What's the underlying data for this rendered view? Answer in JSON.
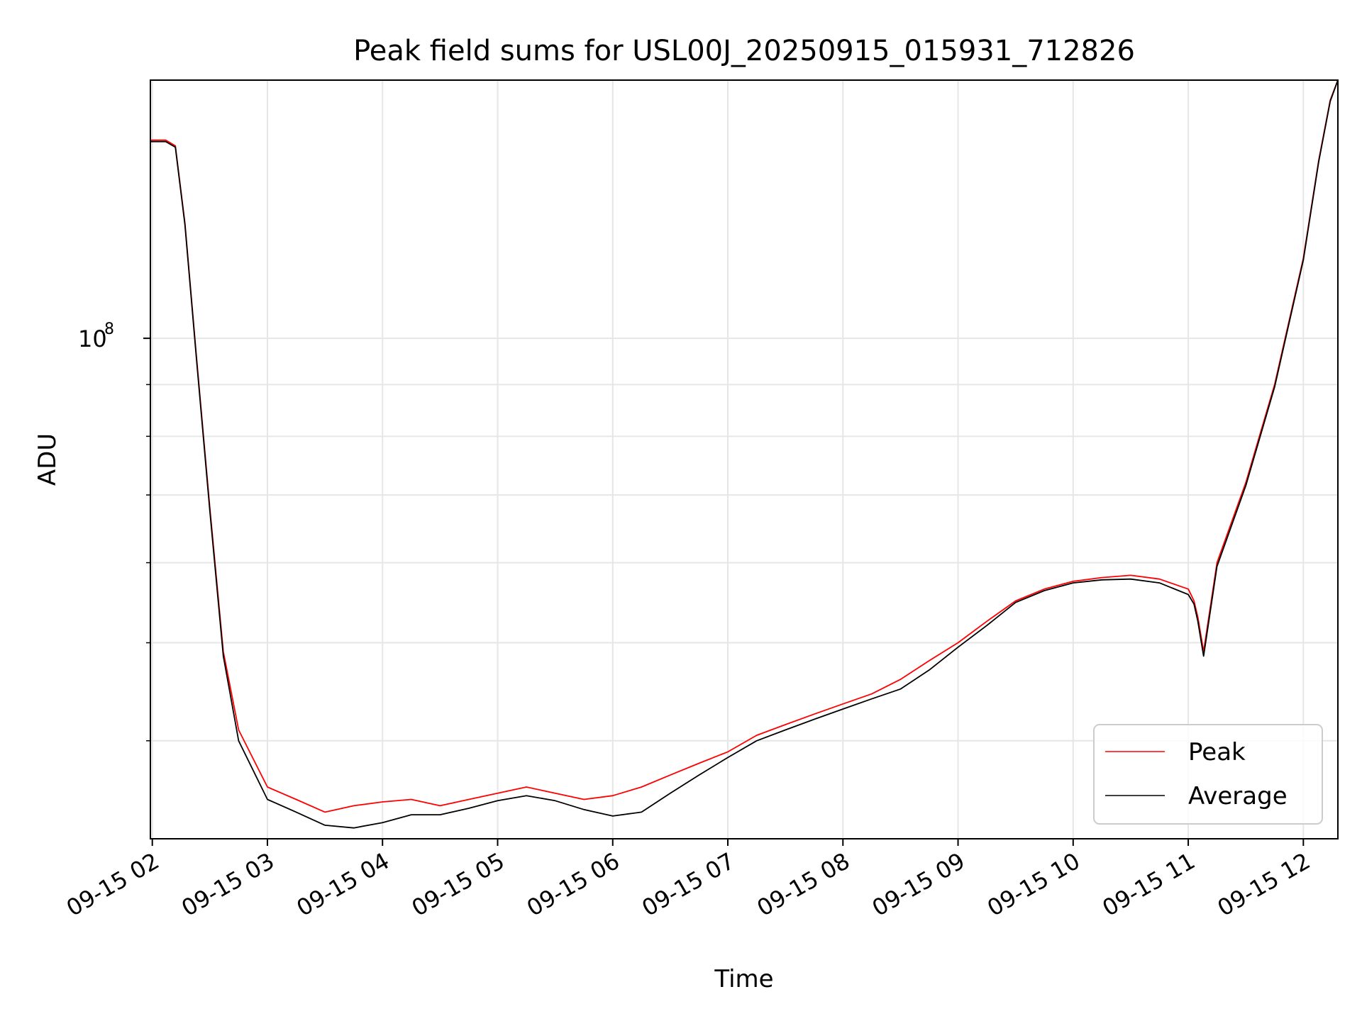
{
  "chart_data": {
    "type": "line",
    "title": "Peak field sums for USL00J_20250915_015931_712826",
    "xlabel": "Time",
    "ylabel": "ADU",
    "y_scale": "log",
    "ylim": [
      32000000,
      180000000
    ],
    "xlim": [
      "09-15 01:59",
      "09-15 12:18"
    ],
    "grid": true,
    "legend_position": "lower-right",
    "x_tick_labels": [
      "09-15 02",
      "09-15 03",
      "09-15 04",
      "09-15 05",
      "09-15 06",
      "09-15 07",
      "09-15 08",
      "09-15 09",
      "09-15 10",
      "09-15 11",
      "09-15 12"
    ],
    "y_tick_label_base": "10",
    "y_tick_label_exp": "8",
    "y_tick_value": 100000000,
    "series": [
      {
        "name": "Peak",
        "color": "#ff0000",
        "x": [
          "09-15 01:59",
          "09-15 02:07",
          "09-15 02:12",
          "09-15 02:17",
          "09-15 02:23",
          "09-15 02:30",
          "09-15 02:37",
          "09-15 02:45",
          "09-15 03:00",
          "09-15 03:15",
          "09-15 03:30",
          "09-15 03:45",
          "09-15 04:00",
          "09-15 04:15",
          "09-15 04:30",
          "09-15 04:45",
          "09-15 05:00",
          "09-15 05:15",
          "09-15 05:30",
          "09-15 05:45",
          "09-15 06:00",
          "09-15 06:15",
          "09-15 06:30",
          "09-15 06:45",
          "09-15 07:00",
          "09-15 07:15",
          "09-15 07:30",
          "09-15 07:45",
          "09-15 08:00",
          "09-15 08:15",
          "09-15 08:30",
          "09-15 08:45",
          "09-15 09:00",
          "09-15 09:15",
          "09-15 09:30",
          "09-15 09:45",
          "09-15 10:00",
          "09-15 10:15",
          "09-15 10:30",
          "09-15 10:45",
          "09-15 11:00",
          "09-15 11:03",
          "09-15 11:05",
          "09-15 11:08",
          "09-15 11:15",
          "09-15 11:30",
          "09-15 11:45",
          "09-15 12:00",
          "09-15 12:08",
          "09-15 12:14",
          "09-15 12:18"
        ],
        "values": [
          157000000,
          157000000,
          155000000,
          130000000,
          96000000,
          68000000,
          49000000,
          41000000,
          36000000,
          35000000,
          34000000,
          34500000,
          34800000,
          35000000,
          34500000,
          35000000,
          35500000,
          36000000,
          35500000,
          35000000,
          35300000,
          36000000,
          37000000,
          38000000,
          39000000,
          40500000,
          41500000,
          42500000,
          43500000,
          44500000,
          46000000,
          48000000,
          50000000,
          52500000,
          55000000,
          56500000,
          57500000,
          58000000,
          58300000,
          57800000,
          56500000,
          55000000,
          53000000,
          49000000,
          60000000,
          72000000,
          90000000,
          120000000,
          150000000,
          172000000,
          180000000
        ]
      },
      {
        "name": "Average",
        "color": "#000000",
        "x": [
          "09-15 01:59",
          "09-15 02:07",
          "09-15 02:12",
          "09-15 02:17",
          "09-15 02:23",
          "09-15 02:30",
          "09-15 02:37",
          "09-15 02:45",
          "09-15 03:00",
          "09-15 03:15",
          "09-15 03:30",
          "09-15 03:45",
          "09-15 04:00",
          "09-15 04:15",
          "09-15 04:30",
          "09-15 04:45",
          "09-15 05:00",
          "09-15 05:15",
          "09-15 05:30",
          "09-15 05:45",
          "09-15 06:00",
          "09-15 06:15",
          "09-15 06:30",
          "09-15 06:45",
          "09-15 07:00",
          "09-15 07:15",
          "09-15 07:30",
          "09-15 07:45",
          "09-15 08:00",
          "09-15 08:15",
          "09-15 08:30",
          "09-15 08:45",
          "09-15 09:00",
          "09-15 09:15",
          "09-15 09:30",
          "09-15 09:45",
          "09-15 10:00",
          "09-15 10:15",
          "09-15 10:30",
          "09-15 10:45",
          "09-15 11:00",
          "09-15 11:03",
          "09-15 11:05",
          "09-15 11:08",
          "09-15 11:15",
          "09-15 11:30",
          "09-15 11:45",
          "09-15 12:00",
          "09-15 12:08",
          "09-15 12:14",
          "09-15 12:18"
        ],
        "values": [
          156500000,
          156500000,
          154500000,
          129500000,
          95500000,
          67500000,
          48500000,
          40000000,
          35000000,
          34000000,
          33000000,
          32800000,
          33200000,
          33800000,
          33800000,
          34300000,
          34900000,
          35300000,
          34900000,
          34200000,
          33700000,
          34000000,
          35500000,
          37000000,
          38500000,
          40000000,
          41000000,
          42000000,
          43000000,
          44000000,
          45000000,
          47000000,
          49500000,
          52000000,
          54800000,
          56300000,
          57300000,
          57700000,
          57800000,
          57300000,
          55800000,
          54600000,
          52500000,
          48500000,
          59500000,
          71500000,
          89500000,
          119500000,
          149500000,
          171500000,
          180000000
        ]
      }
    ]
  }
}
